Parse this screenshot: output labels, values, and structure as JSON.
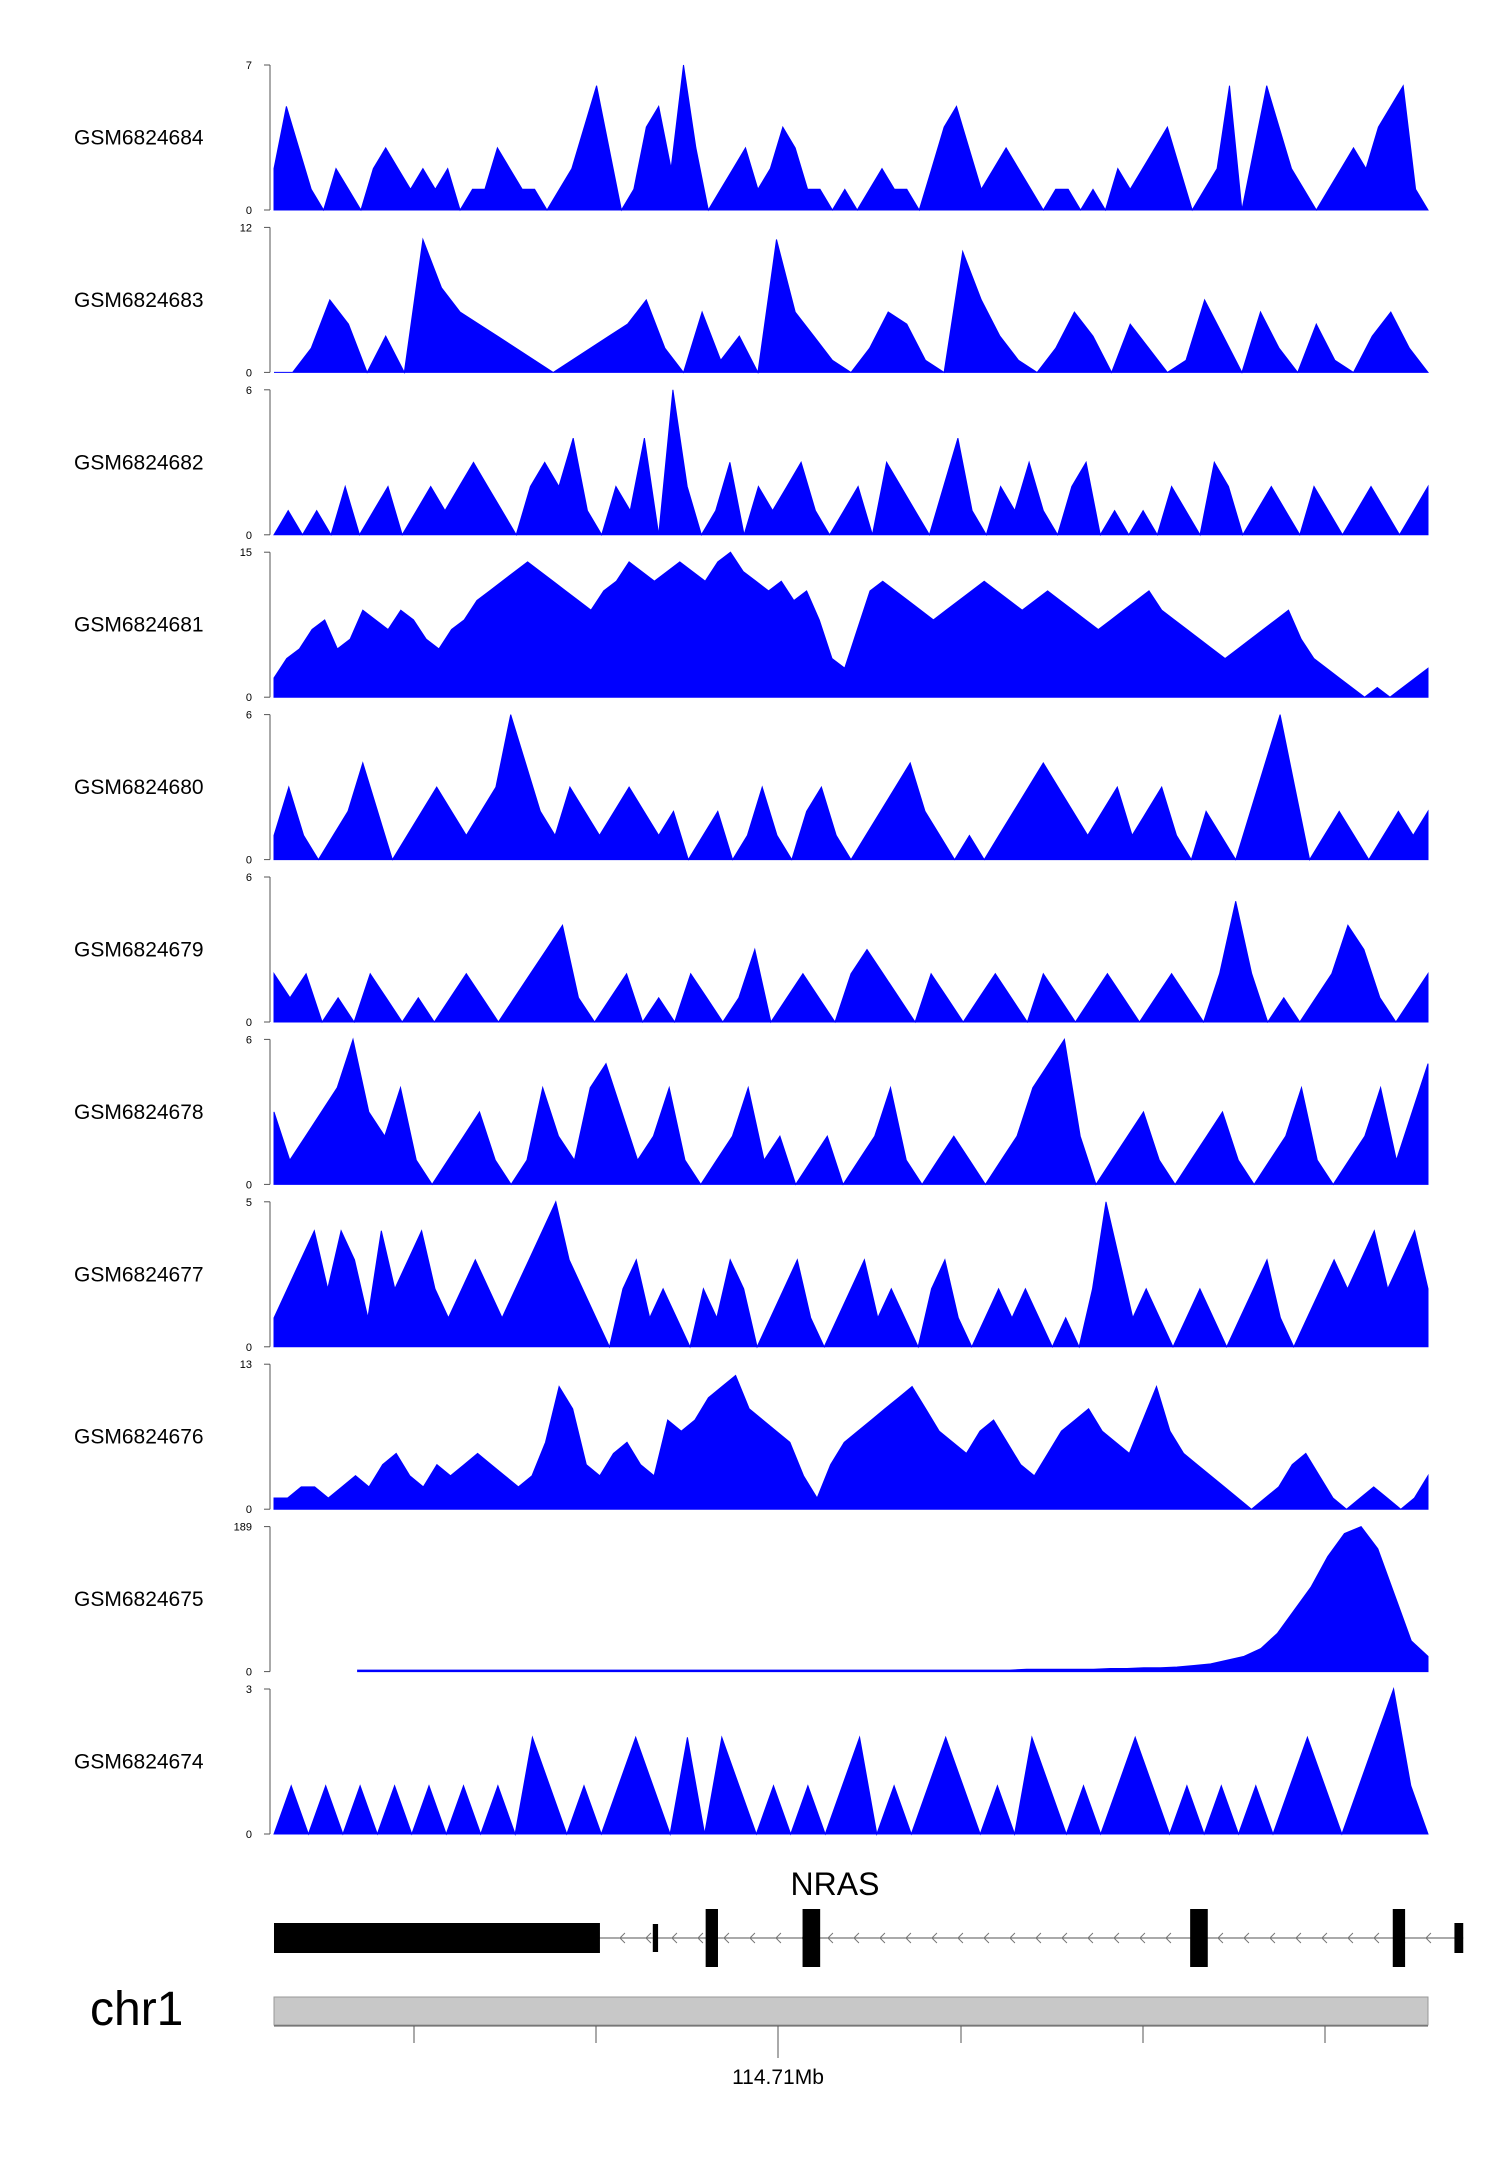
{
  "fill_color": "#0000FF",
  "chart_data": {
    "type": "area",
    "tracks": [
      {
        "name": "GSM6824684",
        "ymax": 7,
        "values": [
          2,
          5,
          3,
          1,
          0,
          2,
          1,
          0,
          2,
          3,
          2,
          1,
          2,
          1,
          2,
          0,
          1,
          1,
          3,
          2,
          1,
          1,
          0,
          1,
          2,
          4,
          6,
          3,
          0,
          1,
          4,
          5,
          2,
          7,
          3,
          0,
          1,
          2,
          3,
          1,
          2,
          4,
          3,
          1,
          1,
          0,
          1,
          0,
          1,
          2,
          1,
          1,
          0,
          2,
          4,
          5,
          3,
          1,
          2,
          3,
          2,
          1,
          0,
          1,
          1,
          0,
          1,
          0,
          2,
          1,
          2,
          3,
          4,
          2,
          0,
          1,
          2,
          6,
          0,
          3,
          6,
          4,
          2,
          1,
          0,
          1,
          2,
          3,
          2,
          4,
          5,
          6,
          1,
          0
        ]
      },
      {
        "name": "GSM6824683",
        "ymax": 12,
        "values": [
          0,
          0,
          2,
          6,
          4,
          0,
          3,
          0,
          11,
          7,
          5,
          4,
          3,
          2,
          1,
          0,
          1,
          2,
          3,
          4,
          6,
          2,
          0,
          5,
          1,
          3,
          0,
          11,
          5,
          3,
          1,
          0,
          2,
          5,
          4,
          1,
          0,
          10,
          6,
          3,
          1,
          0,
          2,
          5,
          3,
          0,
          4,
          2,
          0,
          1,
          6,
          3,
          0,
          5,
          2,
          0,
          4,
          1,
          0,
          3,
          5,
          2,
          0
        ]
      },
      {
        "name": "GSM6824682",
        "ymax": 6,
        "values": [
          0,
          1,
          0,
          1,
          0,
          2,
          0,
          1,
          2,
          0,
          1,
          2,
          1,
          2,
          3,
          2,
          1,
          0,
          2,
          3,
          2,
          4,
          1,
          0,
          2,
          1,
          4,
          0,
          6,
          2,
          0,
          1,
          3,
          0,
          2,
          1,
          2,
          3,
          1,
          0,
          1,
          2,
          0,
          3,
          2,
          1,
          0,
          2,
          4,
          1,
          0,
          2,
          1,
          3,
          1,
          0,
          2,
          3,
          0,
          1,
          0,
          1,
          0,
          2,
          1,
          0,
          3,
          2,
          0,
          1,
          2,
          1,
          0,
          2,
          1,
          0,
          1,
          2,
          1,
          0,
          1,
          2
        ]
      },
      {
        "name": "GSM6824681",
        "ymax": 15,
        "values": [
          2,
          4,
          5,
          7,
          8,
          5,
          6,
          9,
          8,
          7,
          9,
          8,
          6,
          5,
          7,
          8,
          10,
          11,
          12,
          13,
          14,
          13,
          12,
          11,
          10,
          9,
          11,
          12,
          14,
          13,
          12,
          13,
          14,
          13,
          12,
          14,
          15,
          13,
          12,
          11,
          12,
          10,
          11,
          8,
          4,
          3,
          7,
          11,
          12,
          11,
          10,
          9,
          8,
          9,
          10,
          11,
          12,
          11,
          10,
          9,
          10,
          11,
          10,
          9,
          8,
          7,
          8,
          9,
          10,
          11,
          9,
          8,
          7,
          6,
          5,
          4,
          5,
          6,
          7,
          8,
          9,
          6,
          4,
          3,
          2,
          1,
          0,
          1,
          0,
          1,
          2,
          3
        ]
      },
      {
        "name": "GSM6824680",
        "ymax": 6,
        "values": [
          1,
          3,
          1,
          0,
          1,
          2,
          4,
          2,
          0,
          1,
          2,
          3,
          2,
          1,
          2,
          3,
          6,
          4,
          2,
          1,
          3,
          2,
          1,
          2,
          3,
          2,
          1,
          2,
          0,
          1,
          2,
          0,
          1,
          3,
          1,
          0,
          2,
          3,
          1,
          0,
          1,
          2,
          3,
          4,
          2,
          1,
          0,
          1,
          0,
          1,
          2,
          3,
          4,
          3,
          2,
          1,
          2,
          3,
          1,
          2,
          3,
          1,
          0,
          2,
          1,
          0,
          2,
          4,
          6,
          3,
          0,
          1,
          2,
          1,
          0,
          1,
          2,
          1,
          2
        ]
      },
      {
        "name": "GSM6824679",
        "ymax": 6,
        "values": [
          2,
          1,
          2,
          0,
          1,
          0,
          2,
          1,
          0,
          1,
          0,
          1,
          2,
          1,
          0,
          1,
          2,
          3,
          4,
          1,
          0,
          1,
          2,
          0,
          1,
          0,
          2,
          1,
          0,
          1,
          3,
          0,
          1,
          2,
          1,
          0,
          2,
          3,
          2,
          1,
          0,
          2,
          1,
          0,
          1,
          2,
          1,
          0,
          2,
          1,
          0,
          1,
          2,
          1,
          0,
          1,
          2,
          1,
          0,
          2,
          5,
          2,
          0,
          1,
          0,
          1,
          2,
          4,
          3,
          1,
          0,
          1,
          2
        ]
      },
      {
        "name": "GSM6824678",
        "ymax": 6,
        "values": [
          3,
          1,
          2,
          3,
          4,
          6,
          3,
          2,
          4,
          1,
          0,
          1,
          2,
          3,
          1,
          0,
          1,
          4,
          2,
          1,
          4,
          5,
          3,
          1,
          2,
          4,
          1,
          0,
          1,
          2,
          4,
          1,
          2,
          0,
          1,
          2,
          0,
          1,
          2,
          4,
          1,
          0,
          1,
          2,
          1,
          0,
          1,
          2,
          4,
          5,
          6,
          2,
          0,
          1,
          2,
          3,
          1,
          0,
          1,
          2,
          3,
          1,
          0,
          1,
          2,
          4,
          1,
          0,
          1,
          2,
          4,
          1,
          3,
          5
        ]
      },
      {
        "name": "GSM6824677",
        "ymax": 5,
        "values": [
          1,
          2,
          3,
          4,
          2,
          4,
          3,
          1,
          4,
          2,
          3,
          4,
          2,
          1,
          2,
          3,
          2,
          1,
          2,
          3,
          4,
          5,
          3,
          2,
          1,
          0,
          2,
          3,
          1,
          2,
          1,
          0,
          2,
          1,
          3,
          2,
          0,
          1,
          2,
          3,
          1,
          0,
          1,
          2,
          3,
          1,
          2,
          1,
          0,
          2,
          3,
          1,
          0,
          1,
          2,
          1,
          2,
          1,
          0,
          1,
          0,
          2,
          5,
          3,
          1,
          2,
          1,
          0,
          1,
          2,
          1,
          0,
          1,
          2,
          3,
          1,
          0,
          1,
          2,
          3,
          2,
          3,
          4,
          2,
          3,
          4,
          2
        ]
      },
      {
        "name": "GSM6824676",
        "ymax": 13,
        "values": [
          1,
          1,
          2,
          2,
          1,
          2,
          3,
          2,
          4,
          5,
          3,
          2,
          4,
          3,
          4,
          5,
          4,
          3,
          2,
          3,
          6,
          11,
          9,
          4,
          3,
          5,
          6,
          4,
          3,
          8,
          7,
          8,
          10,
          11,
          12,
          9,
          8,
          7,
          6,
          3,
          1,
          4,
          6,
          7,
          8,
          9,
          10,
          11,
          9,
          7,
          6,
          5,
          7,
          8,
          6,
          4,
          3,
          5,
          7,
          8,
          9,
          7,
          6,
          5,
          8,
          11,
          7,
          5,
          4,
          3,
          2,
          1,
          0,
          1,
          2,
          4,
          5,
          3,
          1,
          0,
          1,
          2,
          1,
          0,
          1,
          3
        ]
      },
      {
        "name": "GSM6824675",
        "ymax": 189,
        "values": [
          null,
          null,
          null,
          null,
          null,
          2,
          2,
          2,
          2,
          2,
          2,
          2,
          2,
          2,
          2,
          2,
          2,
          2,
          2,
          2,
          2,
          2,
          2,
          2,
          2,
          2,
          2,
          2,
          2,
          2,
          2,
          2,
          2,
          2,
          2,
          2,
          2,
          2,
          2,
          2,
          2,
          2,
          2,
          2,
          2,
          3,
          3,
          3,
          3,
          3,
          4,
          4,
          5,
          5,
          6,
          8,
          10,
          15,
          20,
          30,
          50,
          80,
          110,
          150,
          180,
          189,
          160,
          100,
          40,
          20
        ]
      },
      {
        "name": "GSM6824674",
        "ymax": 3,
        "values": [
          0,
          1,
          0,
          1,
          0,
          1,
          0,
          1,
          0,
          1,
          0,
          1,
          0,
          1,
          0,
          2,
          1,
          0,
          1,
          0,
          1,
          2,
          1,
          0,
          2,
          0,
          2,
          1,
          0,
          1,
          0,
          1,
          0,
          1,
          2,
          0,
          1,
          0,
          1,
          2,
          1,
          0,
          1,
          0,
          2,
          1,
          0,
          1,
          0,
          1,
          2,
          1,
          0,
          1,
          0,
          1,
          0,
          1,
          0,
          1,
          2,
          1,
          0,
          1,
          2,
          3,
          1,
          0
        ]
      }
    ],
    "gene": {
      "name": "NRAS",
      "exons_mb": [
        [
          114.70405,
          114.7059
        ],
        [
          114.7062,
          114.70623
        ],
        [
          114.7065,
          114.70657
        ],
        [
          114.70705,
          114.70715
        ],
        [
          114.70925,
          114.70935
        ],
        [
          114.7104,
          114.71047
        ],
        [
          114.71075,
          114.7108
        ]
      ]
    },
    "chromosome": "chr1",
    "axis": {
      "xlim_mb": [
        114.70405,
        114.7106
      ],
      "major_tick_mb": 114.71,
      "major_tick_label": "114.71Mb",
      "minor_ticks_mb": [
        114.7048,
        114.70585,
        114.7069,
        114.70795,
        114.709,
        114.71,
        114.71005
      ]
    }
  }
}
